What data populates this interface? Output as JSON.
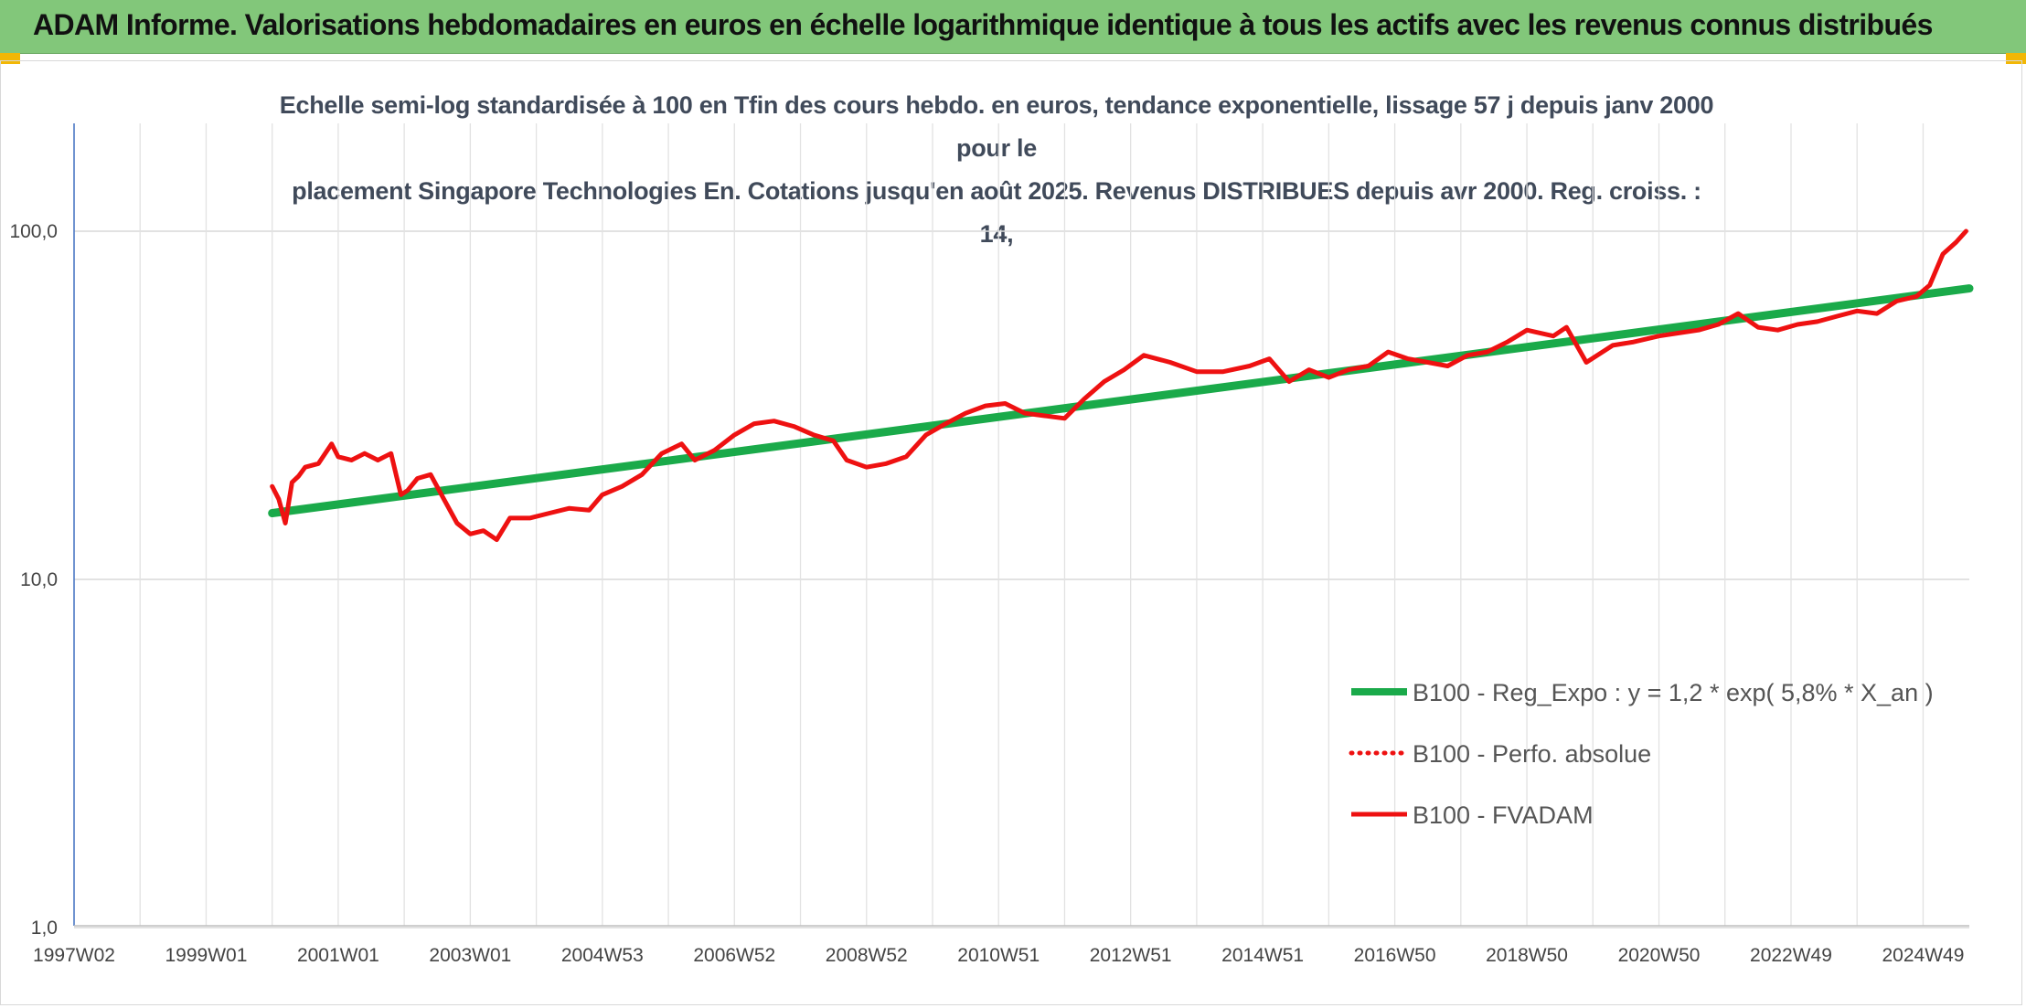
{
  "banner": {
    "title": "ADAM Informe. Valorisations hebdomadaires en euros en échelle logarithmique identique à tous les actifs avec les revenus connus distribués"
  },
  "colors": {
    "banner_bg": "#82c77a",
    "accent_corner": "#f2b705",
    "trend_line": "#1aaa4a",
    "price_line": "#ee1111"
  },
  "chart_data": {
    "type": "line",
    "title": "Echelle semi-log standardisée à 100 en Tfin des cours hebdo. en euros, tendance exponentielle, lissage 57 j depuis janv 2000 pour le placement Singapore Technologies En. Cotations jusqu'en août 2025. Revenus DISTRIBUES depuis avr 2000. Reg. croiss. : 14,",
    "title_lines": [
      "Echelle semi-log standardisée à 100 en Tfin des cours hebdo. en euros, tendance exponentielle, lissage 57 j depuis janv 2000 pour le",
      "placement Singapore Technologies En. Cotations jusqu'en août 2025. Revenus DISTRIBUES depuis avr 2000. Reg. croiss. : 14,"
    ],
    "y_scale": "log",
    "ylim": [
      1,
      200
    ],
    "y_ticks": [
      1,
      10,
      100
    ],
    "y_tick_labels": [
      "1,0",
      "10,0",
      "100,0"
    ],
    "xlim": [
      1997.0,
      2025.7
    ],
    "x_tick_positions": [
      1997.0,
      1999.0,
      2001.0,
      2003.0,
      2005.0,
      2007.0,
      2009.0,
      2011.0,
      2013.0,
      2015.0,
      2017.0,
      2019.0,
      2021.0,
      2023.0,
      2025.0
    ],
    "x_tick_labels": [
      "1997W02",
      "1999W01",
      "2001W01",
      "2003W01",
      "2004W53",
      "2006W52",
      "2008W52",
      "2010W51",
      "2012W51",
      "2014W51",
      "2016W50",
      "2018W50",
      "2020W50",
      "2022W49",
      "2024W49"
    ],
    "grid": true,
    "legend_position": "lower-right",
    "series": [
      {
        "name": "B100 - Reg_Expo : y = 1,2 * exp( 5,8% *  X_an )",
        "style": "solid-thick",
        "color": "#1aaa4a",
        "x": [
          2000.0,
          2025.7
        ],
        "y": [
          15.5,
          68.5
        ]
      },
      {
        "name": "B100 - Perfo. absolue",
        "style": "dotted",
        "color": "#ee1111",
        "x": [],
        "y": []
      },
      {
        "name": "B100 - FVADAM",
        "style": "solid",
        "color": "#ee1111",
        "x": [
          2000.0,
          2000.1,
          2000.2,
          2000.3,
          2000.4,
          2000.5,
          2000.7,
          2000.9,
          2001.0,
          2001.2,
          2001.4,
          2001.6,
          2001.8,
          2001.95,
          2002.05,
          2002.2,
          2002.4,
          2002.6,
          2002.8,
          2003.0,
          2003.2,
          2003.4,
          2003.6,
          2003.9,
          2004.2,
          2004.5,
          2004.8,
          2005.0,
          2005.3,
          2005.6,
          2005.9,
          2006.2,
          2006.4,
          2006.7,
          2007.0,
          2007.3,
          2007.6,
          2007.9,
          2008.2,
          2008.5,
          2008.7,
          2009.0,
          2009.3,
          2009.6,
          2009.9,
          2010.2,
          2010.5,
          2010.8,
          2011.1,
          2011.4,
          2011.7,
          2012.0,
          2012.3,
          2012.6,
          2012.9,
          2013.2,
          2013.6,
          2014.0,
          2014.4,
          2014.8,
          2015.1,
          2015.4,
          2015.7,
          2016.0,
          2016.3,
          2016.6,
          2016.9,
          2017.2,
          2017.5,
          2017.8,
          2018.1,
          2018.4,
          2018.7,
          2019.0,
          2019.2,
          2019.4,
          2019.6,
          2019.9,
          2020.3,
          2020.6,
          2021.0,
          2021.3,
          2021.6,
          2021.9,
          2022.2,
          2022.5,
          2022.8,
          2023.1,
          2023.4,
          2023.7,
          2024.0,
          2024.3,
          2024.6,
          2024.9,
          2025.1,
          2025.3,
          2025.5,
          2025.65
        ],
        "y": [
          18.5,
          17.0,
          14.5,
          19.0,
          19.8,
          21.0,
          21.5,
          24.5,
          22.5,
          22.0,
          23.0,
          22.0,
          23.0,
          17.5,
          18.0,
          19.5,
          20.0,
          17.0,
          14.5,
          13.5,
          13.8,
          13.0,
          15.0,
          15.0,
          15.5,
          16.0,
          15.8,
          17.5,
          18.5,
          20.0,
          23.0,
          24.5,
          22.0,
          23.5,
          26.0,
          28.0,
          28.5,
          27.5,
          26.0,
          25.0,
          22.0,
          21.0,
          21.5,
          22.5,
          26.0,
          28.0,
          30.0,
          31.5,
          32.0,
          30.0,
          29.5,
          29.0,
          33.0,
          37.0,
          40.0,
          44.0,
          42.0,
          39.5,
          39.5,
          41.0,
          43.0,
          37.0,
          40.0,
          38.0,
          40.0,
          41.0,
          45.0,
          43.0,
          42.0,
          41.0,
          44.0,
          45.0,
          48.0,
          52.0,
          51.0,
          50.0,
          53.0,
          42.0,
          47.0,
          48.0,
          50.0,
          51.0,
          52.0,
          54.0,
          58.0,
          53.0,
          52.0,
          54.0,
          55.0,
          57.0,
          59.0,
          58.0,
          63.0,
          65.0,
          70.0,
          86.0,
          93.0,
          100.0
        ]
      }
    ]
  }
}
